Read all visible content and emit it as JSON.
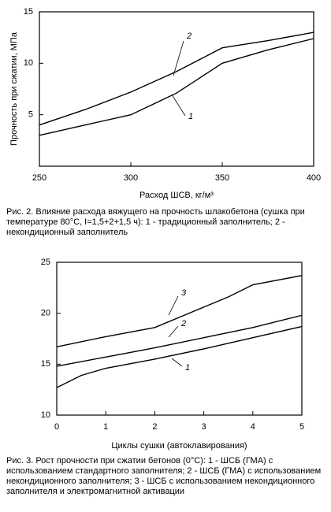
{
  "chart_data": [
    {
      "type": "line",
      "y_label": "Прочность при сжатии, МПа",
      "x_label": "Расход ШСВ, кг/м³",
      "xlim": [
        250,
        400
      ],
      "xticks": [
        250,
        300,
        350,
        400
      ],
      "ylim": [
        0,
        15
      ],
      "yticks": [
        5,
        10,
        15
      ],
      "color": "#000000",
      "series": [
        {
          "name": "2",
          "x": [
            250,
            275,
            300,
            325,
            350,
            375,
            400
          ],
          "values": [
            4.0,
            5.5,
            7.2,
            9.2,
            11.5,
            12.2,
            13.0
          ]
        },
        {
          "name": "1",
          "x": [
            250,
            275,
            300,
            325,
            350,
            375,
            400
          ],
          "values": [
            3.0,
            4.0,
            5.0,
            7.1,
            10.0,
            11.3,
            12.4
          ]
        }
      ],
      "caption": "Рис. 2. Влияние расхода вяжущего на прочность шлакобетона (сушка при температуре 80°С, I=1,5+2+1,5 ч): 1 - традиционный заполнитель; 2 - некондиционный заполнитель"
    },
    {
      "type": "line",
      "x_label": "Циклы сушки (автоклавирования)",
      "xlim": [
        0,
        5
      ],
      "xticks": [
        0,
        1,
        2,
        3,
        4,
        5
      ],
      "ylim": [
        10,
        25
      ],
      "yticks": [
        10,
        15,
        20,
        25
      ],
      "color": "#000000",
      "series": [
        {
          "name": "3",
          "x": [
            0,
            1,
            2,
            3,
            3.5,
            4,
            5
          ],
          "values": [
            16.7,
            17.7,
            18.6,
            20.6,
            21.6,
            22.8,
            23.7
          ]
        },
        {
          "name": "2",
          "x": [
            0,
            1,
            2,
            3,
            4,
            5
          ],
          "values": [
            14.8,
            15.7,
            16.6,
            17.6,
            18.6,
            19.8
          ]
        },
        {
          "name": "1",
          "x": [
            0,
            0.5,
            1,
            2,
            3,
            4,
            5
          ],
          "values": [
            12.7,
            13.9,
            14.6,
            15.5,
            16.5,
            17.6,
            18.7
          ]
        }
      ],
      "caption": "Рис. 3. Рост прочности при сжатии бетонов (0°С): 1 - ШСБ (ГМА) с использованием стандартного заполнителя; 2 - ШСБ (ГМА) с использованием некондиционного заполнителя; 3 - ШСБ с использованием некондиционного заполнителя и электромагнитной активации"
    }
  ]
}
